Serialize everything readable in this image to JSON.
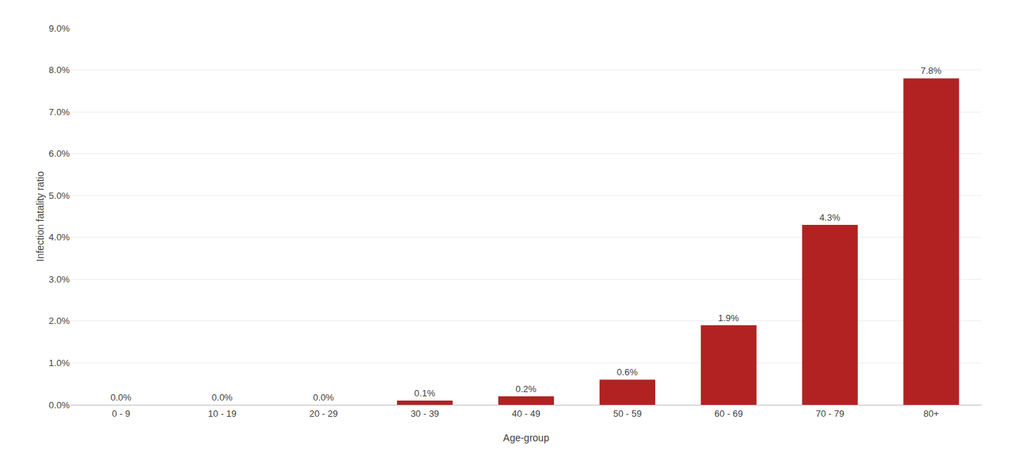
{
  "chart_data": {
    "type": "bar",
    "categories": [
      "0 - 9",
      "10 - 19",
      "20 - 29",
      "30 - 39",
      "40 - 49",
      "50 - 59",
      "60 - 69",
      "70 - 79",
      "80+"
    ],
    "values": [
      0.0,
      0.0,
      0.0,
      0.001,
      0.002,
      0.006,
      0.019,
      0.043,
      0.078
    ],
    "value_labels": [
      "0.0%",
      "0.0%",
      "0.0%",
      "0.1%",
      "0.2%",
      "0.6%",
      "1.9%",
      "4.3%",
      "7.8%"
    ],
    "data_labels": true,
    "color": "#B22222",
    "x_label": "Age-group",
    "y_label": "Infection fatality ratio",
    "ylim": [
      0,
      0.09
    ],
    "yticks": [
      {
        "value": 0.0,
        "label": "0.0%"
      },
      {
        "value": 0.01,
        "label": "1.0%"
      },
      {
        "value": 0.02,
        "label": "2.0%"
      },
      {
        "value": 0.03,
        "label": "3.0%"
      },
      {
        "value": 0.04,
        "label": "4.0%"
      },
      {
        "value": 0.05,
        "label": "5.0%"
      },
      {
        "value": 0.06,
        "label": "6.0%"
      },
      {
        "value": 0.07,
        "label": "7.0%"
      },
      {
        "value": 0.08,
        "label": "8.0%"
      },
      {
        "value": 0.09,
        "label": "9.0%"
      }
    ],
    "grid": true
  }
}
